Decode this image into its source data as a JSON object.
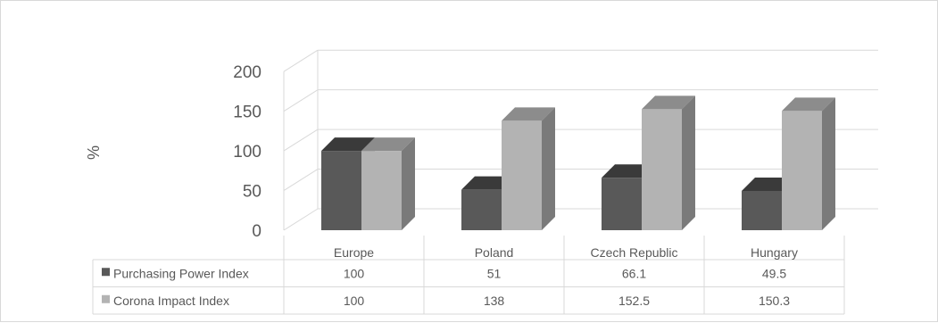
{
  "chart_data": {
    "type": "bar",
    "style": "3d-clustered-column-with-data-table",
    "categories": [
      "Europe",
      "Poland",
      "Czech Republic",
      "Hungary"
    ],
    "series": [
      {
        "name": "Purchasing Power Index",
        "values": [
          100,
          51,
          66.1,
          49.5
        ],
        "labels": [
          "100",
          "51",
          "66.1",
          "49.5"
        ],
        "color": "#595959"
      },
      {
        "name": "Corona Impact Index",
        "values": [
          100,
          138,
          152.5,
          150.3
        ],
        "labels": [
          "100",
          "138",
          "152.5",
          "150.3"
        ],
        "color": "#b3b3b3"
      }
    ],
    "ylabel": "%",
    "ylim": [
      0,
      200
    ],
    "yticks": [
      "0",
      "50",
      "100",
      "150",
      "200"
    ],
    "grid": true,
    "legend": "data-table-below"
  }
}
